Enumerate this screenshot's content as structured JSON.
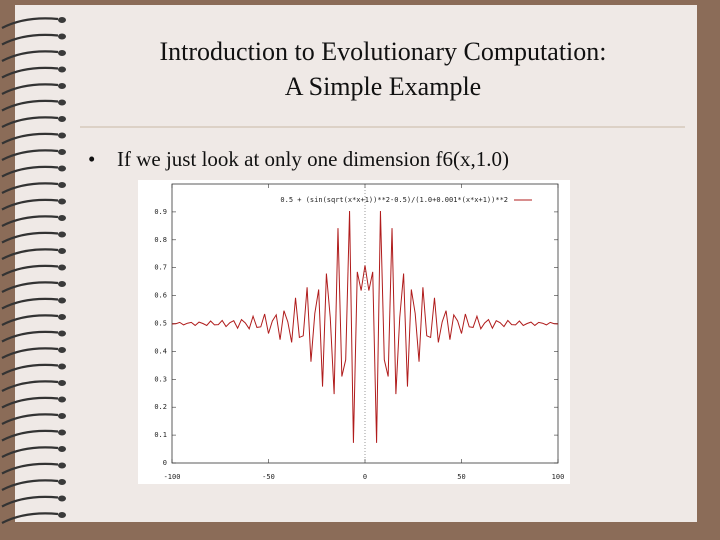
{
  "slide": {
    "title": [
      "Introduction to Evolutionary Computation:",
      "A Simple Example"
    ],
    "bullet": "If we just look at only one dimension f6(x,1.0)"
  },
  "chart_data": {
    "type": "line",
    "x": [
      -100,
      -98,
      -96,
      -94,
      -92,
      -90,
      -88,
      -86,
      -84,
      -82,
      -80,
      -78,
      -76,
      -74,
      -72,
      -70,
      -68,
      -66,
      -64,
      -62,
      -60,
      -58,
      -56,
      -54,
      -52,
      -50,
      -48,
      -46,
      -44,
      -42,
      -40,
      -38,
      -36,
      -34,
      -32,
      -30,
      -28,
      -26,
      -24,
      -22,
      -20,
      -18,
      -16,
      -14,
      -12,
      -10,
      -8,
      -6,
      -4,
      -2,
      0,
      2,
      4,
      6,
      8,
      10,
      12,
      14,
      16,
      18,
      20,
      22,
      24,
      26,
      28,
      30,
      32,
      34,
      36,
      38,
      40,
      42,
      44,
      46,
      48,
      50,
      52,
      54,
      56,
      58,
      60,
      62,
      64,
      66,
      68,
      70,
      72,
      74,
      76,
      78,
      80,
      82,
      84,
      86,
      88,
      90,
      92,
      94,
      96,
      98,
      100
    ],
    "series": [
      {
        "name": "0.5 + (sin(sqrt(x*x+1))**2-0.5)/(1.0+0.001*(x*x+1))**2",
        "color": "#b01c1c",
        "values": [
          0.498,
          0.499,
          0.504,
          0.495,
          0.501,
          0.504,
          0.493,
          0.505,
          0.5,
          0.493,
          0.509,
          0.495,
          0.496,
          0.511,
          0.489,
          0.503,
          0.51,
          0.483,
          0.514,
          0.502,
          0.481,
          0.526,
          0.486,
          0.488,
          0.534,
          0.464,
          0.509,
          0.531,
          0.442,
          0.546,
          0.506,
          0.432,
          0.592,
          0.45,
          0.456,
          0.63,
          0.363,
          0.536,
          0.622,
          0.274,
          0.679,
          0.521,
          0.247,
          0.842,
          0.31,
          0.37,
          0.903,
          0.072,
          0.685,
          0.618,
          0.708,
          0.618,
          0.685,
          0.072,
          0.903,
          0.37,
          0.31,
          0.842,
          0.247,
          0.521,
          0.679,
          0.274,
          0.622,
          0.536,
          0.363,
          0.63,
          0.456,
          0.45,
          0.592,
          0.432,
          0.506,
          0.546,
          0.442,
          0.531,
          0.509,
          0.464,
          0.534,
          0.488,
          0.486,
          0.526,
          0.481,
          0.502,
          0.514,
          0.483,
          0.51,
          0.503,
          0.489,
          0.511,
          0.496,
          0.495,
          0.509,
          0.493,
          0.5,
          0.505,
          0.493,
          0.504,
          0.501,
          0.495,
          0.504,
          0.499,
          0.498
        ]
      }
    ],
    "xlim": [
      -100,
      100
    ],
    "ylim": [
      0,
      1
    ],
    "xticks": [
      -100,
      -50,
      0,
      50,
      100
    ],
    "yticks": [
      0,
      0.1,
      0.2,
      0.3,
      0.4,
      0.5,
      0.6,
      0.7,
      0.8,
      0.9
    ],
    "legend": "upper right"
  }
}
